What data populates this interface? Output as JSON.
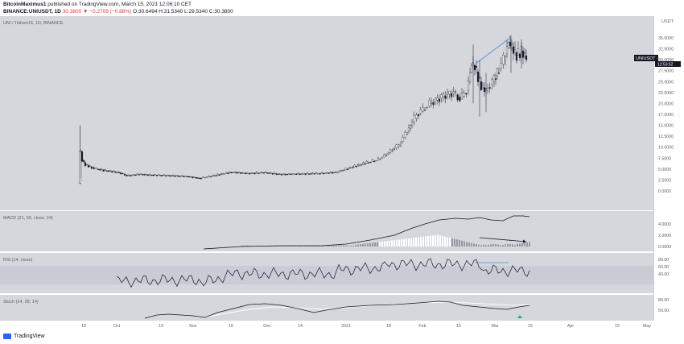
{
  "header": {
    "author": "BitcoinMaximus1",
    "published_text": "published on TradingView.com, March 15, 2021 12:06:10 CET",
    "symbol": "BINANCE:UNIUSDT, 1D",
    "change": "30.3800 ▼ −0.2709 (−0.88%)",
    "ohlc": "O:30.6494 H:31.5340 L:29.5340 C:30.3800"
  },
  "main_pane": {
    "label": "UNI / TetherUS, 1D, BINANCE",
    "currency": "USDT",
    "price_tag": "UNIUSDT · 30.3800",
    "countdown": "12:53:52",
    "y_ticks": [
      "35.0000",
      "32.5000",
      "30.0000",
      "27.5000",
      "25.0000",
      "22.5000",
      "20.0000",
      "17.5000",
      "15.0000",
      "12.5000",
      "10.0000",
      "7.5000",
      "5.0000",
      "2.5000",
      "0.0000"
    ]
  },
  "macd_pane": {
    "label": "MACD (21, 50, close, 24)",
    "y_ticks": [
      "4.0000",
      "2.0000",
      "0.0000"
    ]
  },
  "rsi_pane": {
    "label": "RSI (14, close)",
    "y_ticks": [
      "80.00",
      "60.00",
      "40.00"
    ]
  },
  "stoch_pane": {
    "label": "Stoch (14, 28, 14)",
    "y_ticks": [
      "80.00",
      "50.00"
    ]
  },
  "x_axis": {
    "ticks": [
      "18",
      "Oct",
      "19",
      "Nov",
      "16",
      "Dec",
      "14",
      "2021",
      "18",
      "Feb",
      "15",
      "Mar",
      "15",
      "Apr",
      "19",
      "May"
    ]
  },
  "footer": {
    "brand": "TradingView"
  },
  "colors": {
    "pane_bg": "#d5d7dd",
    "rsi_band": "#c9ccd4",
    "accent": "#2962ff",
    "candle": "#131722",
    "signal": "#ffffff"
  }
}
